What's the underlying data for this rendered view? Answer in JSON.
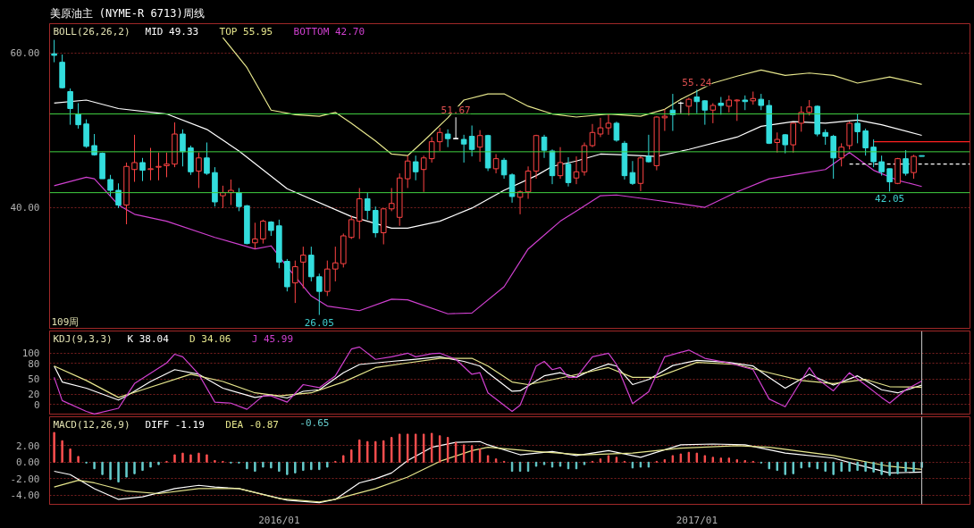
{
  "chart_data": [
    {
      "type": "candlestick",
      "title": "美原油主 (NYME-R 6713)周线",
      "legend_title": "BOLL(26,26,2)",
      "legend": "top left",
      "grid": "y",
      "tick_labels": "y",
      "xlim": [
        "2015-06-18",
        "2017-08-28"
      ],
      "ylim": [
        24.2,
        63.8
      ],
      "yticks": [
        {
          "value": 60,
          "label": "60.00"
        },
        {
          "value": 40,
          "label": "40.00"
        }
      ],
      "x": [
        "2015-06-22",
        "2015-06-29",
        "2015-07-06",
        "2015-07-13",
        "2015-07-20",
        "2015-07-27",
        "2015-08-03",
        "2015-08-10",
        "2015-08-17",
        "2015-08-24",
        "2015-08-31",
        "2015-09-07",
        "2015-09-14",
        "2015-09-21",
        "2015-09-28",
        "2015-10-05",
        "2015-10-12",
        "2015-10-19",
        "2015-10-26",
        "2015-11-02",
        "2015-11-09",
        "2015-11-16",
        "2015-11-23",
        "2015-11-30",
        "2015-12-07",
        "2015-12-14",
        "2015-12-21",
        "2015-12-28",
        "2016-01-04",
        "2016-01-11",
        "2016-01-18",
        "2016-01-25",
        "2016-02-01",
        "2016-02-08",
        "2016-02-15",
        "2016-02-22",
        "2016-02-29",
        "2016-03-07",
        "2016-03-14",
        "2016-03-21",
        "2016-03-28",
        "2016-04-04",
        "2016-04-11",
        "2016-04-18",
        "2016-04-25",
        "2016-05-02",
        "2016-05-09",
        "2016-05-16",
        "2016-05-23",
        "2016-05-30",
        "2016-06-06",
        "2016-06-13",
        "2016-06-20",
        "2016-06-27",
        "2016-07-04",
        "2016-07-11",
        "2016-07-18",
        "2016-07-25",
        "2016-08-01",
        "2016-08-08",
        "2016-08-15",
        "2016-08-22",
        "2016-08-29",
        "2016-09-05",
        "2016-09-12",
        "2016-09-19",
        "2016-09-26",
        "2016-10-03",
        "2016-10-10",
        "2016-10-17",
        "2016-10-24",
        "2016-10-31",
        "2016-11-07",
        "2016-11-14",
        "2016-11-21",
        "2016-11-28",
        "2016-12-05",
        "2016-12-12",
        "2016-12-19",
        "2016-12-26",
        "2017-01-02",
        "2017-01-09",
        "2017-01-16",
        "2017-01-23",
        "2017-01-30",
        "2017-02-06",
        "2017-02-13",
        "2017-02-20",
        "2017-02-27",
        "2017-03-06",
        "2017-03-13",
        "2017-03-20",
        "2017-03-27",
        "2017-04-03",
        "2017-04-10",
        "2017-04-17",
        "2017-04-24",
        "2017-05-01",
        "2017-05-08",
        "2017-05-15",
        "2017-05-22",
        "2017-05-29",
        "2017-06-05",
        "2017-06-12",
        "2017-06-19",
        "2017-06-26",
        "2017-07-03",
        "2017-07-10",
        "2017-07-17"
      ],
      "ohlc": [
        [
          59.9,
          61.7,
          58.8,
          59.7
        ],
        [
          58.8,
          59.8,
          55.4,
          55.5
        ],
        [
          55.0,
          55.4,
          50.7,
          52.8
        ],
        [
          52.1,
          53.5,
          50.2,
          50.7
        ],
        [
          50.8,
          51.4,
          47.7,
          47.9
        ],
        [
          48.0,
          49.5,
          46.7,
          46.8
        ],
        [
          47.0,
          47.1,
          43.7,
          43.7
        ],
        [
          43.6,
          44.2,
          41.4,
          42.2
        ],
        [
          42.2,
          43.1,
          39.9,
          40.3
        ],
        [
          40.3,
          45.8,
          37.8,
          45.3
        ],
        [
          44.9,
          49.4,
          43.3,
          45.8
        ],
        [
          45.8,
          46.4,
          43.4,
          44.8
        ],
        [
          44.9,
          47.7,
          43.5,
          45.0
        ],
        [
          45.2,
          47.1,
          43.5,
          45.3
        ],
        [
          45.4,
          47.1,
          43.9,
          45.6
        ],
        [
          45.6,
          51.0,
          45.2,
          49.5
        ],
        [
          49.5,
          50.1,
          45.3,
          47.2
        ],
        [
          47.7,
          48.0,
          44.2,
          44.6
        ],
        [
          44.7,
          47.1,
          42.5,
          46.4
        ],
        [
          46.4,
          48.4,
          44.2,
          44.4
        ],
        [
          44.5,
          45.2,
          40.1,
          40.7
        ],
        [
          41.5,
          42.8,
          39.9,
          41.9
        ],
        [
          41.9,
          43.6,
          40.3,
          42.2
        ],
        [
          41.9,
          42.5,
          39.5,
          40.1
        ],
        [
          40.2,
          40.3,
          35.2,
          35.3
        ],
        [
          35.4,
          38.0,
          34.6,
          35.9
        ],
        [
          35.9,
          38.4,
          35.3,
          38.2
        ],
        [
          38.1,
          38.2,
          36.3,
          37.0
        ],
        [
          37.6,
          38.4,
          32.1,
          32.9
        ],
        [
          33.0,
          33.3,
          29.1,
          29.7
        ],
        [
          30.2,
          33.1,
          27.6,
          32.3
        ],
        [
          32.9,
          34.9,
          29.5,
          33.8
        ],
        [
          33.8,
          34.9,
          30.4,
          31.0
        ],
        [
          31.0,
          31.4,
          26.05,
          29.1
        ],
        [
          29.1,
          33.1,
          28.5,
          32.0
        ],
        [
          32.0,
          34.9,
          30.4,
          32.8
        ],
        [
          32.7,
          36.6,
          32.2,
          36.3
        ],
        [
          36.1,
          38.9,
          35.9,
          38.4
        ],
        [
          38.2,
          42.5,
          35.9,
          41.1
        ],
        [
          41.1,
          41.9,
          38.4,
          39.6
        ],
        [
          39.6,
          40.1,
          36.1,
          36.7
        ],
        [
          36.7,
          39.9,
          35.2,
          39.8
        ],
        [
          39.8,
          42.5,
          39.5,
          40.5
        ],
        [
          38.7,
          44.4,
          37.6,
          43.8
        ],
        [
          43.7,
          46.7,
          42.5,
          46.0
        ],
        [
          45.9,
          46.7,
          43.5,
          44.6
        ],
        [
          44.9,
          46.7,
          42.0,
          46.4
        ],
        [
          46.3,
          49.1,
          45.8,
          48.5
        ],
        [
          48.5,
          50.3,
          47.3,
          49.7
        ],
        [
          49.5,
          50.1,
          47.8,
          48.9
        ],
        [
          48.9,
          51.67,
          48.8,
          48.9
        ],
        [
          48.8,
          49.4,
          45.8,
          48.2
        ],
        [
          49.2,
          50.6,
          46.6,
          47.5
        ],
        [
          47.8,
          50.0,
          45.9,
          49.3
        ],
        [
          49.3,
          49.4,
          44.7,
          45.1
        ],
        [
          45.0,
          46.9,
          44.4,
          46.3
        ],
        [
          46.1,
          46.4,
          43.7,
          44.2
        ],
        [
          44.2,
          44.4,
          40.6,
          41.4
        ],
        [
          41.3,
          42.2,
          39.1,
          42.0
        ],
        [
          42.0,
          45.3,
          41.1,
          44.7
        ],
        [
          44.7,
          49.4,
          43.7,
          49.3
        ],
        [
          49.1,
          49.4,
          46.4,
          47.4
        ],
        [
          47.3,
          47.5,
          43.0,
          44.1
        ],
        [
          44.1,
          47.8,
          43.7,
          45.8
        ],
        [
          45.6,
          46.5,
          42.7,
          43.2
        ],
        [
          43.8,
          46.6,
          43.0,
          44.6
        ],
        [
          44.6,
          48.4,
          44.1,
          48.0
        ],
        [
          48.0,
          50.8,
          47.8,
          49.7
        ],
        [
          49.5,
          51.6,
          49.1,
          50.3
        ],
        [
          50.3,
          52.1,
          49.4,
          50.9
        ],
        [
          50.9,
          51.1,
          48.5,
          48.7
        ],
        [
          48.3,
          48.6,
          43.6,
          44.1
        ],
        [
          44.5,
          46.0,
          42.9,
          43.1
        ],
        [
          43.1,
          46.6,
          42.1,
          46.4
        ],
        [
          46.6,
          49.4,
          45.8,
          45.9
        ],
        [
          45.4,
          51.8,
          44.8,
          51.7
        ],
        [
          51.6,
          52.7,
          49.9,
          51.8
        ],
        [
          52.6,
          54.7,
          49.9,
          52.0
        ],
        [
          53.5,
          53.7,
          52.2,
          53.5
        ],
        [
          53.1,
          54.2,
          51.9,
          54.0
        ],
        [
          54.3,
          55.24,
          52.2,
          53.7
        ],
        [
          53.8,
          53.9,
          50.7,
          52.6
        ],
        [
          52.6,
          53.5,
          50.9,
          53.2
        ],
        [
          53.5,
          54.3,
          52.0,
          53.2
        ],
        [
          53.1,
          54.5,
          52.3,
          53.9
        ],
        [
          53.8,
          54.0,
          51.2,
          53.9
        ],
        [
          53.9,
          54.5,
          52.6,
          53.7
        ],
        [
          53.8,
          55.0,
          53.3,
          54.1
        ],
        [
          54.0,
          54.7,
          52.6,
          53.2
        ],
        [
          53.2,
          53.9,
          48.2,
          48.3
        ],
        [
          48.4,
          49.7,
          47.1,
          48.8
        ],
        [
          49.4,
          49.5,
          47.0,
          48.1
        ],
        [
          48.1,
          50.9,
          47.1,
          50.9
        ],
        [
          50.9,
          53.1,
          49.8,
          52.3
        ],
        [
          52.3,
          53.9,
          51.9,
          53.0
        ],
        [
          53.1,
          53.2,
          49.2,
          49.5
        ],
        [
          49.7,
          50.1,
          48.1,
          49.2
        ],
        [
          49.2,
          49.4,
          43.7,
          46.4
        ],
        [
          46.4,
          48.3,
          45.3,
          47.8
        ],
        [
          48.0,
          51.1,
          47.5,
          50.9
        ],
        [
          50.9,
          52.1,
          48.3,
          49.8
        ],
        [
          49.9,
          50.2,
          46.7,
          47.7
        ],
        [
          47.8,
          48.8,
          45.2,
          45.9
        ],
        [
          45.9,
          46.7,
          44.1,
          44.6
        ],
        [
          45.0,
          45.0,
          42.05,
          43.3
        ],
        [
          43.1,
          46.4,
          43.0,
          46.3
        ],
        [
          46.3,
          47.4,
          44.1,
          44.4
        ],
        [
          44.5,
          46.8,
          43.7,
          46.6
        ],
        [
          46.7,
          46.7,
          46.6,
          46.6
        ]
      ],
      "colors": [
        "#33dddd",
        "#33dddd",
        "#33dddd",
        "#33dddd",
        "#33dddd",
        "#33dddd",
        "#33dddd",
        "#33dddd",
        "#33dddd",
        "#ff4444",
        "#ff4444",
        "#33dddd",
        "#ff4444",
        "#ff4444",
        "#ff4444",
        "#ff4444",
        "#33dddd",
        "#33dddd",
        "#ff4444",
        "#33dddd",
        "#33dddd",
        "#ff4444",
        "#ff4444",
        "#33dddd",
        "#33dddd",
        "#ff4444",
        "#ff4444",
        "#33dddd",
        "#33dddd",
        "#33dddd",
        "#ff4444",
        "#ff4444",
        "#33dddd",
        "#33dddd",
        "#ff4444",
        "#ff4444",
        "#ff4444",
        "#ff4444",
        "#ff4444",
        "#33dddd",
        "#33dddd",
        "#ff4444",
        "#ff4444",
        "#ff4444",
        "#ff4444",
        "#33dddd",
        "#ff4444",
        "#ff4444",
        "#ff4444",
        "#33dddd",
        "#ffffff",
        "#33dddd",
        "#33dddd",
        "#ff4444",
        "#33dddd",
        "#ff4444",
        "#33dddd",
        "#33dddd",
        "#ff4444",
        "#ff4444",
        "#ff4444",
        "#33dddd",
        "#33dddd",
        "#ff4444",
        "#33dddd",
        "#ff4444",
        "#ff4444",
        "#ff4444",
        "#ff4444",
        "#ff4444",
        "#33dddd",
        "#33dddd",
        "#33dddd",
        "#ff4444",
        "#33dddd",
        "#ff4444",
        "#ff4444",
        "#33dddd",
        "#ffffff",
        "#ff4444",
        "#33dddd",
        "#33dddd",
        "#ff4444",
        "#33dddd",
        "#ff4444",
        "#ff4444",
        "#33dddd",
        "#ff4444",
        "#33dddd",
        "#33dddd",
        "#ff4444",
        "#33dddd",
        "#ff4444",
        "#ff4444",
        "#ff4444",
        "#33dddd",
        "#33dddd",
        "#33dddd",
        "#ff4444",
        "#ff4444",
        "#33dddd",
        "#33dddd",
        "#33dddd",
        "#33dddd",
        "#33dddd",
        "#ff4444",
        "#33dddd",
        "#ff4444",
        "#33dddd"
      ],
      "series": [
        {
          "name": "MID  49.33",
          "type": "line",
          "color": "#ffffff",
          "x": [
            "2015-06-22",
            "2015-07-20",
            "2015-08-17",
            "2015-09-28",
            "2015-11-02",
            "2015-11-30",
            "2016-01-11",
            "2016-03-07",
            "2016-04-11",
            "2016-04-25",
            "2016-05-23",
            "2016-06-20",
            "2016-07-18",
            "2016-08-15",
            "2016-08-29",
            "2016-09-19",
            "2016-10-10",
            "2016-10-31",
            "2016-11-28",
            "2016-12-26",
            "2017-02-06",
            "2017-02-27",
            "2017-03-27",
            "2017-04-24",
            "2017-05-22",
            "2017-06-12",
            "2017-07-17"
          ],
          "values": [
            53.5,
            53.9,
            52.8,
            52.1,
            50.1,
            47.3,
            42.4,
            38.8,
            37.3,
            37.3,
            38.2,
            39.9,
            42.2,
            44.1,
            45.3,
            46.0,
            46.9,
            46.8,
            46.6,
            47.5,
            49.1,
            50.5,
            51.1,
            50.9,
            51.3,
            50.7,
            49.33
          ]
        },
        {
          "name": "TOP  55.95",
          "type": "line",
          "color": "#e6e68c",
          "x": [
            "2015-11-16",
            "2015-12-07",
            "2015-12-28",
            "2016-01-18",
            "2016-02-08",
            "2016-02-22",
            "2016-03-07",
            "2016-03-28",
            "2016-04-11",
            "2016-04-25",
            "2016-05-09",
            "2016-05-30",
            "2016-06-13",
            "2016-07-04",
            "2016-07-18",
            "2016-08-08",
            "2016-08-29",
            "2016-09-19",
            "2016-10-17",
            "2016-11-14",
            "2016-12-05",
            "2016-12-19",
            "2017-01-16",
            "2017-02-06",
            "2017-02-27",
            "2017-03-20",
            "2017-04-10",
            "2017-05-01",
            "2017-05-22",
            "2017-06-19",
            "2017-07-17"
          ],
          "values": [
            62.0,
            58.1,
            52.6,
            52.0,
            51.8,
            52.3,
            50.9,
            48.6,
            46.9,
            46.7,
            48.6,
            51.6,
            53.9,
            54.7,
            54.7,
            53.1,
            52.1,
            51.7,
            52.1,
            51.8,
            52.7,
            54.0,
            56.1,
            57.0,
            57.8,
            57.1,
            57.4,
            57.1,
            56.1,
            56.9,
            55.95
          ]
        },
        {
          "name": "BOTTOM  42.70",
          "type": "line",
          "color": "#d040d0",
          "x": [
            "2015-06-22",
            "2015-07-20",
            "2015-07-27",
            "2015-08-17",
            "2015-08-31",
            "2015-09-28",
            "2015-11-09",
            "2015-12-14",
            "2015-12-28",
            "2016-01-11",
            "2016-02-01",
            "2016-02-15",
            "2016-03-14",
            "2016-04-11",
            "2016-04-25",
            "2016-05-30",
            "2016-06-20",
            "2016-07-18",
            "2016-08-08",
            "2016-09-05",
            "2016-09-19",
            "2016-10-10",
            "2016-10-24",
            "2016-11-28",
            "2016-12-12",
            "2017-01-09",
            "2017-02-06",
            "2017-03-06",
            "2017-04-03",
            "2017-04-24",
            "2017-05-15",
            "2017-06-05",
            "2017-06-26",
            "2017-07-17"
          ],
          "values": [
            42.8,
            43.9,
            43.7,
            40.3,
            39.1,
            38.2,
            36.1,
            34.6,
            35.0,
            32.3,
            28.5,
            27.2,
            26.6,
            28.1,
            28.0,
            26.2,
            26.3,
            29.7,
            34.6,
            38.2,
            39.5,
            41.5,
            41.6,
            40.9,
            40.6,
            40.0,
            42.0,
            43.7,
            44.4,
            44.9,
            47.1,
            44.8,
            43.5,
            42.7
          ]
        },
        {
          "type": "line",
          "color": "#ff2020",
          "x": [
            "2017-06-05",
            "2017-08-28"
          ],
          "values": [
            48.5,
            48.5
          ]
        },
        {
          "type": "line",
          "color": "#ffffff",
          "line_style": "dashed",
          "x": [
            "2017-05-15",
            "2017-08-28"
          ],
          "values": [
            45.6,
            45.6
          ]
        }
      ],
      "ref_lines": [
        {
          "axis": "y",
          "value": 52.1,
          "color": "#40d040"
        },
        {
          "axis": "y",
          "value": 47.2,
          "color": "#40d040"
        },
        {
          "axis": "y",
          "value": 41.9,
          "color": "#40d040"
        }
      ],
      "annotations": [
        "109周",
        {
          "text": "51.67",
          "x": "2016-06-06",
          "y": 51.67
        },
        {
          "text": "55.24",
          "x": "2017-01-02",
          "y": 55.24
        },
        {
          "text": "26.05",
          "x": "2016-02-08",
          "y": 26.05
        },
        {
          "text": "42.05",
          "x": "2017-06-19",
          "y": 42.05
        }
      ]
    },
    {
      "type": "line",
      "legend_title": "KDJ(9,3,3)",
      "legend": "top left",
      "grid": "y",
      "tick_labels": "y",
      "xlim": [
        "2015-06-18",
        "2017-08-28"
      ],
      "ylim": [
        -20,
        143
      ],
      "yticks": [
        100,
        80,
        50,
        20,
        0
      ],
      "series": [
        {
          "name": "K  38.04",
          "color": "#ffffff",
          "x": [
            "2015-06-22",
            "2015-06-29",
            "2015-07-20",
            "2015-08-17",
            "2015-08-24",
            "2015-09-14",
            "2015-10-05",
            "2015-10-26",
            "2015-11-16",
            "2015-12-14",
            "2015-12-28",
            "2016-01-11",
            "2016-01-25",
            "2016-02-08",
            "2016-02-29",
            "2016-03-14",
            "2016-04-11",
            "2016-05-02",
            "2016-05-23",
            "2016-06-13",
            "2016-06-27",
            "2016-07-04",
            "2016-07-25",
            "2016-08-01",
            "2016-08-22",
            "2016-09-05",
            "2016-09-19",
            "2016-10-03",
            "2016-10-17",
            "2016-10-24",
            "2016-11-07",
            "2016-11-21",
            "2016-12-12",
            "2017-01-02",
            "2017-01-30",
            "2017-02-20",
            "2017-03-06",
            "2017-03-20",
            "2017-04-10",
            "2017-05-01",
            "2017-05-22",
            "2017-06-12",
            "2017-06-26",
            "2017-07-17"
          ],
          "values": [
            75,
            44,
            32,
            9,
            17,
            45,
            68,
            59,
            32,
            14,
            19,
            13,
            26,
            29,
            62,
            78,
            84,
            88,
            93,
            84,
            75,
            62,
            26,
            27,
            56,
            62,
            53,
            68,
            79,
            75,
            39,
            49,
            76,
            86,
            82,
            75,
            53,
            32,
            59,
            38,
            56,
            29,
            23,
            38.04
          ]
        },
        {
          "name": "D  34.06",
          "color": "#e6e68c",
          "x": [
            "2015-06-22",
            "2015-07-20",
            "2015-08-17",
            "2015-09-07",
            "2015-10-19",
            "2015-11-16",
            "2015-12-14",
            "2016-01-04",
            "2016-02-01",
            "2016-02-29",
            "2016-03-28",
            "2016-04-25",
            "2016-05-23",
            "2016-06-20",
            "2016-07-04",
            "2016-07-25",
            "2016-08-08",
            "2016-09-12",
            "2016-10-17",
            "2016-11-07",
            "2016-11-28",
            "2017-01-02",
            "2017-02-06",
            "2017-03-06",
            "2017-04-03",
            "2017-05-01",
            "2017-05-29",
            "2017-06-19",
            "2017-07-17"
          ],
          "values": [
            75,
            47,
            14,
            29,
            59,
            45,
            23,
            17,
            23,
            44,
            72,
            81,
            90,
            90,
            75,
            44,
            39,
            55,
            72,
            53,
            53,
            82,
            78,
            62,
            47,
            41,
            49,
            35,
            34.06
          ]
        },
        {
          "name": "J  45.99",
          "color": "#d040d0",
          "x": [
            "2015-06-22",
            "2015-06-29",
            "2015-07-20",
            "2015-07-27",
            "2015-08-17",
            "2015-08-24",
            "2015-08-31",
            "2015-09-28",
            "2015-10-05",
            "2015-10-12",
            "2015-10-26",
            "2015-11-09",
            "2015-11-23",
            "2015-12-07",
            "2015-12-21",
            "2015-12-28",
            "2016-01-11",
            "2016-01-25",
            "2016-02-08",
            "2016-02-22",
            "2016-03-07",
            "2016-03-14",
            "2016-03-28",
            "2016-04-11",
            "2016-04-25",
            "2016-05-02",
            "2016-05-16",
            "2016-05-23",
            "2016-06-06",
            "2016-06-20",
            "2016-06-27",
            "2016-07-04",
            "2016-07-25",
            "2016-08-01",
            "2016-08-15",
            "2016-08-22",
            "2016-08-29",
            "2016-09-05",
            "2016-09-12",
            "2016-09-19",
            "2016-10-03",
            "2016-10-17",
            "2016-10-24",
            "2016-11-07",
            "2016-11-21",
            "2016-12-05",
            "2016-12-26",
            "2017-01-09",
            "2017-01-30",
            "2017-02-20",
            "2017-03-06",
            "2017-03-20",
            "2017-04-10",
            "2017-04-17",
            "2017-05-01",
            "2017-05-15",
            "2017-05-29",
            "2017-06-12",
            "2017-06-19",
            "2017-07-03",
            "2017-07-17"
          ],
          "values": [
            53,
            8,
            -13,
            -18,
            -7,
            17,
            41,
            81,
            98,
            93,
            59,
            5,
            3,
            -9,
            17,
            17,
            5,
            39,
            33,
            56,
            108,
            112,
            88,
            93,
            100,
            93,
            99,
            100,
            88,
            59,
            62,
            23,
            -13,
            -1,
            75,
            84,
            68,
            72,
            53,
            53,
            93,
            100,
            78,
            2,
            25,
            93,
            106,
            90,
            81,
            68,
            11,
            -4,
            72,
            50,
            27,
            62,
            38,
            14,
            3,
            29,
            45.99
          ]
        }
      ],
      "ref_lines": [
        {
          "axis": "x",
          "value": "2017-07-17",
          "color": "#c8c8c8"
        }
      ]
    },
    {
      "type": "bar",
      "legend_title": "MACD(12,26,9)",
      "legend": "top left",
      "grid": "y",
      "xlim": [
        "2015-06-18",
        "2017-08-28"
      ],
      "ylim": [
        -5.1,
        5.5
      ],
      "yticks": [
        {
          "value": 2,
          "label": "2.00"
        },
        {
          "value": 0,
          "label": "0.00"
        },
        {
          "value": -2,
          "label": "-2.00"
        },
        {
          "value": -4,
          "label": "-4.00"
        }
      ],
      "xticks": [
        {
          "value": "2016-01-04",
          "label": "2016/01"
        },
        {
          "value": "2017-01-02",
          "label": "2017/01"
        }
      ],
      "x": [
        "2015-06-22",
        "2015-06-29",
        "2015-07-06",
        "2015-07-13",
        "2015-07-20",
        "2015-07-27",
        "2015-08-03",
        "2015-08-10",
        "2015-08-17",
        "2015-08-24",
        "2015-08-31",
        "2015-09-07",
        "2015-09-14",
        "2015-09-21",
        "2015-09-28",
        "2015-10-05",
        "2015-10-12",
        "2015-10-19",
        "2015-10-26",
        "2015-11-02",
        "2015-11-09",
        "2015-11-16",
        "2015-11-23",
        "2015-11-30",
        "2015-12-07",
        "2015-12-14",
        "2015-12-21",
        "2015-12-28",
        "2016-01-04",
        "2016-01-11",
        "2016-01-18",
        "2016-01-25",
        "2016-02-01",
        "2016-02-08",
        "2016-02-15",
        "2016-02-22",
        "2016-02-29",
        "2016-03-07",
        "2016-03-14",
        "2016-03-21",
        "2016-03-28",
        "2016-04-04",
        "2016-04-11",
        "2016-04-18",
        "2016-04-25",
        "2016-05-02",
        "2016-05-09",
        "2016-05-16",
        "2016-05-23",
        "2016-05-30",
        "2016-06-06",
        "2016-06-13",
        "2016-06-20",
        "2016-06-27",
        "2016-07-04",
        "2016-07-11",
        "2016-07-18",
        "2016-07-25",
        "2016-08-01",
        "2016-08-08",
        "2016-08-15",
        "2016-08-22",
        "2016-08-29",
        "2016-09-05",
        "2016-09-12",
        "2016-09-19",
        "2016-09-26",
        "2016-10-03",
        "2016-10-10",
        "2016-10-17",
        "2016-10-24",
        "2016-10-31",
        "2016-11-07",
        "2016-11-14",
        "2016-11-21",
        "2016-11-28",
        "2016-12-05",
        "2016-12-12",
        "2016-12-19",
        "2016-12-26",
        "2017-01-02",
        "2017-01-09",
        "2017-01-16",
        "2017-01-23",
        "2017-01-30",
        "2017-02-06",
        "2017-02-13",
        "2017-02-20",
        "2017-02-27",
        "2017-03-06",
        "2017-03-13",
        "2017-03-20",
        "2017-03-27",
        "2017-04-03",
        "2017-04-10",
        "2017-04-17",
        "2017-04-24",
        "2017-05-01",
        "2017-05-08",
        "2017-05-15",
        "2017-05-22",
        "2017-05-29",
        "2017-06-05",
        "2017-06-12",
        "2017-06-19",
        "2017-06-26",
        "2017-07-03",
        "2017-07-10",
        "2017-07-17"
      ],
      "series": [
        {
          "name": "DIFF  -1.19",
          "type": "line",
          "color": "#ffffff",
          "x": [
            "2015-06-22",
            "2015-07-06",
            "2015-07-27",
            "2015-08-17",
            "2015-09-07",
            "2015-09-21",
            "2015-10-05",
            "2015-10-26",
            "2015-11-09",
            "2015-11-30",
            "2015-12-21",
            "2016-01-11",
            "2016-02-08",
            "2016-02-22",
            "2016-03-14",
            "2016-03-28",
            "2016-04-11",
            "2016-04-25",
            "2016-05-16",
            "2016-06-06",
            "2016-06-27",
            "2016-07-04",
            "2016-08-01",
            "2016-08-29",
            "2016-09-19",
            "2016-10-17",
            "2016-11-14",
            "2016-12-19",
            "2017-01-16",
            "2017-02-13",
            "2017-03-20",
            "2017-05-01",
            "2017-05-22",
            "2017-06-19",
            "2017-07-17"
          ],
          "values": [
            -1.1,
            -1.5,
            -3.2,
            -4.5,
            -4.2,
            -3.7,
            -3.2,
            -2.8,
            -3.0,
            -3.2,
            -3.9,
            -4.6,
            -4.9,
            -4.5,
            -2.5,
            -2.0,
            -1.3,
            0.2,
            1.8,
            2.4,
            2.5,
            2.1,
            0.9,
            1.3,
            0.8,
            1.4,
            0.6,
            2.1,
            2.2,
            2.1,
            1.1,
            0.5,
            -0.3,
            -1.3,
            -1.19
          ]
        },
        {
          "name": "DEA  -0.87",
          "type": "line",
          "color": "#e6e68c",
          "x": [
            "2015-06-22",
            "2015-07-13",
            "2015-07-27",
            "2015-08-24",
            "2015-09-21",
            "2015-10-26",
            "2015-11-30",
            "2016-01-04",
            "2016-02-08",
            "2016-02-22",
            "2016-03-28",
            "2016-04-25",
            "2016-05-23",
            "2016-06-20",
            "2016-07-04",
            "2016-08-15",
            "2016-09-26",
            "2016-11-07",
            "2016-12-19",
            "2017-02-06",
            "2017-03-06",
            "2017-05-01",
            "2017-06-19",
            "2017-07-17"
          ],
          "values": [
            -3.0,
            -2.2,
            -2.5,
            -3.5,
            -3.8,
            -3.2,
            -3.2,
            -4.4,
            -4.8,
            -4.5,
            -3.2,
            -1.8,
            0.1,
            1.4,
            1.8,
            1.3,
            0.9,
            1.1,
            1.7,
            2.0,
            1.8,
            0.8,
            -0.5,
            -0.87
          ]
        },
        {
          "name": "-0.65",
          "type": "bar",
          "values": [
            3.6,
            2.6,
            1.6,
            0.7,
            -0.1,
            -0.8,
            -1.5,
            -2.1,
            -2.4,
            -1.8,
            -1.4,
            -1.0,
            -0.6,
            -0.3,
            0.1,
            0.9,
            1.1,
            0.9,
            1.1,
            0.9,
            0.2,
            0.1,
            -0.1,
            -0.1,
            -0.8,
            -1.1,
            -0.6,
            -0.7,
            -1.1,
            -1.5,
            -1.3,
            -1.0,
            -0.9,
            -0.9,
            -0.6,
            0.1,
            0.8,
            1.5,
            2.7,
            2.5,
            2.5,
            2.6,
            3.0,
            3.4,
            3.4,
            3.4,
            3.4,
            3.5,
            3.2,
            3.0,
            2.4,
            2.1,
            2.0,
            1.6,
            0.8,
            0.4,
            0.1,
            -1.1,
            -1.1,
            -1.1,
            -0.5,
            -0.3,
            -0.6,
            -0.5,
            -0.8,
            -0.8,
            -0.3,
            0.1,
            0.4,
            0.8,
            0.6,
            0.1,
            -0.7,
            -0.6,
            -0.6,
            0.1,
            0.3,
            0.8,
            1.0,
            1.2,
            1.1,
            0.8,
            0.6,
            0.5,
            0.5,
            0.3,
            0.2,
            0.1,
            -0.1,
            -0.8,
            -1.0,
            -1.5,
            -1.4,
            -0.7,
            -0.6,
            -0.8,
            -1.1,
            -1.5,
            -1.1,
            -1.1,
            -1.0,
            -1.1,
            -1.2,
            -1.5,
            -1.6,
            -1.4,
            -1.1,
            -1.1,
            -0.65
          ],
          "colors": [
            "#ff5050",
            "#ff5050",
            "#ff5050",
            "#ff5050",
            "#66cccc",
            "#66cccc",
            "#66cccc",
            "#66cccc",
            "#66cccc",
            "#66cccc",
            "#66cccc",
            "#66cccc",
            "#66cccc",
            "#66cccc",
            "#ff5050",
            "#ff5050",
            "#ff5050",
            "#ff5050",
            "#ff5050",
            "#ff5050",
            "#ff5050",
            "#ff5050",
            "#66cccc",
            "#66cccc",
            "#66cccc",
            "#66cccc",
            "#66cccc",
            "#66cccc",
            "#66cccc",
            "#66cccc",
            "#66cccc",
            "#66cccc",
            "#66cccc",
            "#66cccc",
            "#66cccc",
            "#ff5050",
            "#ff5050",
            "#ff5050",
            "#ff5050",
            "#ff5050",
            "#ff5050",
            "#ff5050",
            "#ff5050",
            "#ff5050",
            "#ff5050",
            "#ff5050",
            "#ff5050",
            "#ff5050",
            "#ff5050",
            "#ff5050",
            "#ff5050",
            "#ff5050",
            "#ff5050",
            "#ff5050",
            "#ff5050",
            "#ff5050",
            "#ff5050",
            "#66cccc",
            "#66cccc",
            "#66cccc",
            "#66cccc",
            "#66cccc",
            "#66cccc",
            "#66cccc",
            "#66cccc",
            "#66cccc",
            "#66cccc",
            "#ff5050",
            "#ff5050",
            "#ff5050",
            "#ff5050",
            "#ff5050",
            "#66cccc",
            "#66cccc",
            "#66cccc",
            "#ff5050",
            "#ff5050",
            "#ff5050",
            "#ff5050",
            "#ff5050",
            "#ff5050",
            "#ff5050",
            "#ff5050",
            "#ff5050",
            "#ff5050",
            "#ff5050",
            "#ff5050",
            "#ff5050",
            "#66cccc",
            "#66cccc",
            "#66cccc",
            "#66cccc",
            "#66cccc",
            "#66cccc",
            "#66cccc",
            "#66cccc",
            "#66cccc",
            "#66cccc",
            "#66cccc",
            "#66cccc",
            "#66cccc",
            "#66cccc",
            "#66cccc",
            "#66cccc",
            "#66cccc",
            "#66cccc",
            "#66cccc",
            "#66cccc",
            "#66cccc"
          ]
        }
      ],
      "ref_lines": [
        {
          "axis": "x",
          "value": "2017-07-17",
          "color": "#c8c8c8"
        }
      ]
    }
  ]
}
